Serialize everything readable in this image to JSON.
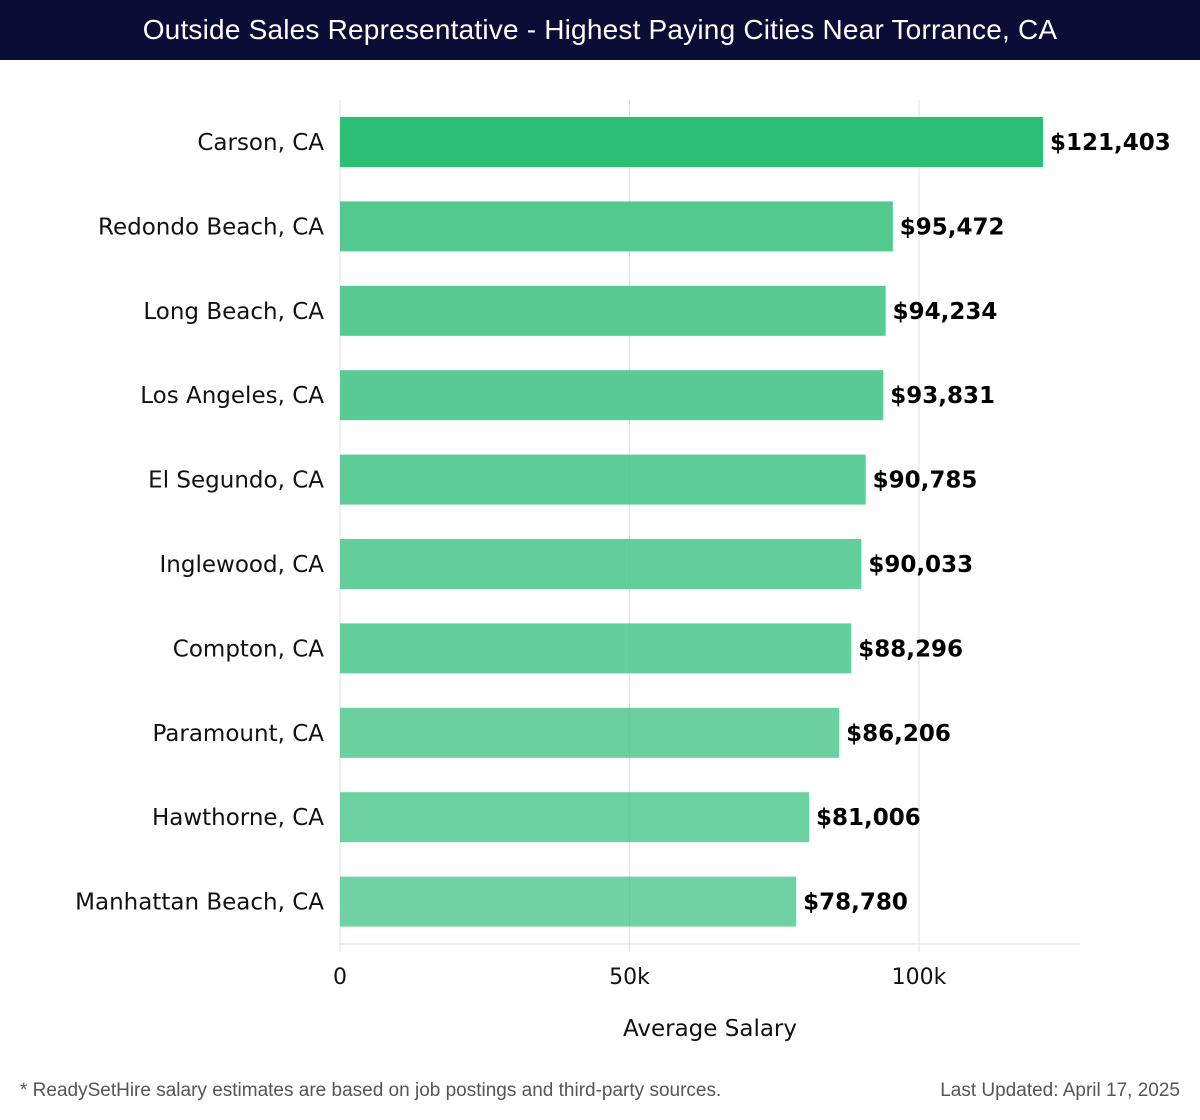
{
  "header": {
    "title": "Outside Sales Representative - Highest Paying Cities Near Torrance, CA"
  },
  "chart_data": {
    "type": "bar",
    "orientation": "horizontal",
    "title": "Outside Sales Representative - Highest Paying Cities Near Torrance, CA",
    "categories": [
      "Carson, CA",
      "Redondo Beach, CA",
      "Long Beach, CA",
      "Los Angeles, CA",
      "El Segundo, CA",
      "Inglewood, CA",
      "Compton, CA",
      "Paramount, CA",
      "Hawthorne, CA",
      "Manhattan Beach, CA"
    ],
    "values": [
      121403,
      95472,
      94234,
      93831,
      90785,
      90033,
      88296,
      86206,
      81006,
      78780
    ],
    "value_labels": [
      "$121,403",
      "$95,472",
      "$94,234",
      "$93,831",
      "$90,785",
      "$90,033",
      "$88,296",
      "$86,206",
      "$81,006",
      "$78,780"
    ],
    "xlabel": "Average Salary",
    "ylabel": "",
    "xlim": [
      0,
      127800
    ],
    "xticks": [
      0,
      50000,
      100000
    ],
    "xtick_labels": [
      "0",
      "50k",
      "100k"
    ],
    "grid": "vertical",
    "colors": {
      "top_bar": "#2bbf75",
      "other_bars": "#4cc78b",
      "grid": "#e0e0e0",
      "label": "#111111"
    }
  },
  "footer": {
    "note": "* ReadySetHire salary estimates are based on job postings and third-party sources.",
    "updated": "Last Updated: April 17, 2025"
  }
}
